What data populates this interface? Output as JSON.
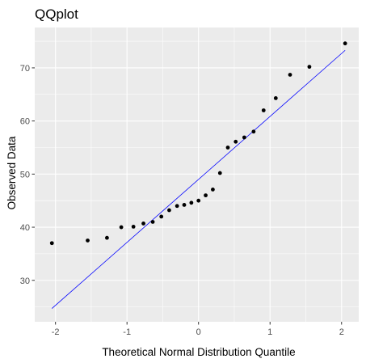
{
  "chart_data": {
    "type": "scatter",
    "title": "QQplot",
    "xlabel": "Theoretical Normal Distribution Quantile",
    "ylabel": "Observed Data",
    "xlim": [
      -2.29,
      2.24
    ],
    "ylim": [
      22.2,
      77.6
    ],
    "x_ticks": [
      -2,
      -1,
      0,
      1,
      2
    ],
    "y_ticks": [
      30,
      40,
      50,
      60,
      70
    ],
    "grid": true,
    "points": [
      {
        "x": -2.05,
        "y": 37.0
      },
      {
        "x": -1.55,
        "y": 37.5
      },
      {
        "x": -1.28,
        "y": 38.0
      },
      {
        "x": -1.08,
        "y": 40.0
      },
      {
        "x": -0.91,
        "y": 40.1
      },
      {
        "x": -0.77,
        "y": 40.7
      },
      {
        "x": -0.64,
        "y": 41.0
      },
      {
        "x": -0.52,
        "y": 42.0
      },
      {
        "x": -0.41,
        "y": 43.2
      },
      {
        "x": -0.3,
        "y": 44.0
      },
      {
        "x": -0.2,
        "y": 44.2
      },
      {
        "x": -0.1,
        "y": 44.6
      },
      {
        "x": 0.0,
        "y": 45.0
      },
      {
        "x": 0.1,
        "y": 46.0
      },
      {
        "x": 0.2,
        "y": 47.1
      },
      {
        "x": 0.3,
        "y": 50.2
      },
      {
        "x": 0.41,
        "y": 55.0
      },
      {
        "x": 0.52,
        "y": 56.1
      },
      {
        "x": 0.64,
        "y": 56.9
      },
      {
        "x": 0.77,
        "y": 58.0
      },
      {
        "x": 0.91,
        "y": 62.0
      },
      {
        "x": 1.08,
        "y": 64.3
      },
      {
        "x": 1.28,
        "y": 68.7
      },
      {
        "x": 1.55,
        "y": 70.2
      },
      {
        "x": 2.05,
        "y": 74.6
      }
    ],
    "reference_line": {
      "x": [
        -2.05,
        2.05
      ],
      "y": [
        24.7,
        73.3
      ]
    },
    "colors": {
      "panel_background": "#ebebeb",
      "grid_major": "#ffffff",
      "points": "#000000",
      "reference_line": "#0000ff"
    }
  }
}
